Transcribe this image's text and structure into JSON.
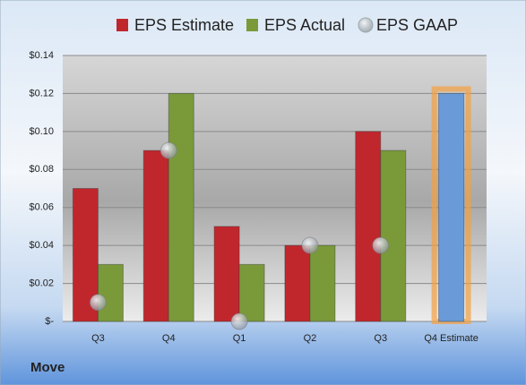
{
  "chart_data": {
    "type": "bar",
    "footer": "Move",
    "categories": [
      "Q3",
      "Q4",
      "Q1",
      "Q2",
      "Q3",
      "Q4 Estimate"
    ],
    "series": [
      {
        "name": "EPS Estimate",
        "color": "#c0272d",
        "values": [
          0.07,
          0.09,
          0.05,
          0.04,
          0.1,
          0.12
        ],
        "colors": [
          "#c0272d",
          "#c0272d",
          "#c0272d",
          "#c0272d",
          "#c0272d",
          "#6a9bd8"
        ]
      },
      {
        "name": "EPS Actual",
        "color": "#7a9a3a",
        "values": [
          0.03,
          0.12,
          0.03,
          0.04,
          0.09,
          null
        ]
      },
      {
        "name": "EPS GAAP",
        "color": "#a8acb0",
        "type": "scatter",
        "values": [
          0.01,
          0.09,
          0.0,
          0.04,
          0.04,
          null
        ]
      }
    ],
    "ylim": [
      0,
      0.14
    ],
    "yticks": [
      {
        "value": 0,
        "label": "$-"
      },
      {
        "value": 0.02,
        "label": "$0.02"
      },
      {
        "value": 0.04,
        "label": "$0.04"
      },
      {
        "value": 0.06,
        "label": "$0.06"
      },
      {
        "value": 0.08,
        "label": "$0.08"
      },
      {
        "value": 0.1,
        "label": "$0.10"
      },
      {
        "value": 0.12,
        "label": "$0.12"
      },
      {
        "value": 0.14,
        "label": "$0.14"
      }
    ],
    "grid": true
  }
}
